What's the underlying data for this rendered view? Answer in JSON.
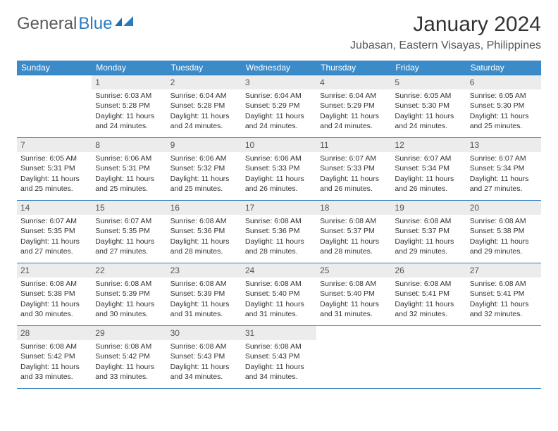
{
  "logo": {
    "text1": "General",
    "text2": "Blue"
  },
  "title": "January 2024",
  "location": "Jubasan, Eastern Visayas, Philippines",
  "colors": {
    "header_bg": "#3b8bc9",
    "header_text": "#ffffff",
    "rule": "#2b7bbf",
    "daynum_bg": "#ececec",
    "body_text": "#333333",
    "location_text": "#555555"
  },
  "day_names": [
    "Sunday",
    "Monday",
    "Tuesday",
    "Wednesday",
    "Thursday",
    "Friday",
    "Saturday"
  ],
  "weeks": [
    [
      {
        "day": "",
        "sunrise": "",
        "sunset": "",
        "daylight1": "",
        "daylight2": ""
      },
      {
        "day": "1",
        "sunrise": "Sunrise: 6:03 AM",
        "sunset": "Sunset: 5:28 PM",
        "daylight1": "Daylight: 11 hours",
        "daylight2": "and 24 minutes."
      },
      {
        "day": "2",
        "sunrise": "Sunrise: 6:04 AM",
        "sunset": "Sunset: 5:28 PM",
        "daylight1": "Daylight: 11 hours",
        "daylight2": "and 24 minutes."
      },
      {
        "day": "3",
        "sunrise": "Sunrise: 6:04 AM",
        "sunset": "Sunset: 5:29 PM",
        "daylight1": "Daylight: 11 hours",
        "daylight2": "and 24 minutes."
      },
      {
        "day": "4",
        "sunrise": "Sunrise: 6:04 AM",
        "sunset": "Sunset: 5:29 PM",
        "daylight1": "Daylight: 11 hours",
        "daylight2": "and 24 minutes."
      },
      {
        "day": "5",
        "sunrise": "Sunrise: 6:05 AM",
        "sunset": "Sunset: 5:30 PM",
        "daylight1": "Daylight: 11 hours",
        "daylight2": "and 24 minutes."
      },
      {
        "day": "6",
        "sunrise": "Sunrise: 6:05 AM",
        "sunset": "Sunset: 5:30 PM",
        "daylight1": "Daylight: 11 hours",
        "daylight2": "and 25 minutes."
      }
    ],
    [
      {
        "day": "7",
        "sunrise": "Sunrise: 6:05 AM",
        "sunset": "Sunset: 5:31 PM",
        "daylight1": "Daylight: 11 hours",
        "daylight2": "and 25 minutes."
      },
      {
        "day": "8",
        "sunrise": "Sunrise: 6:06 AM",
        "sunset": "Sunset: 5:31 PM",
        "daylight1": "Daylight: 11 hours",
        "daylight2": "and 25 minutes."
      },
      {
        "day": "9",
        "sunrise": "Sunrise: 6:06 AM",
        "sunset": "Sunset: 5:32 PM",
        "daylight1": "Daylight: 11 hours",
        "daylight2": "and 25 minutes."
      },
      {
        "day": "10",
        "sunrise": "Sunrise: 6:06 AM",
        "sunset": "Sunset: 5:33 PM",
        "daylight1": "Daylight: 11 hours",
        "daylight2": "and 26 minutes."
      },
      {
        "day": "11",
        "sunrise": "Sunrise: 6:07 AM",
        "sunset": "Sunset: 5:33 PM",
        "daylight1": "Daylight: 11 hours",
        "daylight2": "and 26 minutes."
      },
      {
        "day": "12",
        "sunrise": "Sunrise: 6:07 AM",
        "sunset": "Sunset: 5:34 PM",
        "daylight1": "Daylight: 11 hours",
        "daylight2": "and 26 minutes."
      },
      {
        "day": "13",
        "sunrise": "Sunrise: 6:07 AM",
        "sunset": "Sunset: 5:34 PM",
        "daylight1": "Daylight: 11 hours",
        "daylight2": "and 27 minutes."
      }
    ],
    [
      {
        "day": "14",
        "sunrise": "Sunrise: 6:07 AM",
        "sunset": "Sunset: 5:35 PM",
        "daylight1": "Daylight: 11 hours",
        "daylight2": "and 27 minutes."
      },
      {
        "day": "15",
        "sunrise": "Sunrise: 6:07 AM",
        "sunset": "Sunset: 5:35 PM",
        "daylight1": "Daylight: 11 hours",
        "daylight2": "and 27 minutes."
      },
      {
        "day": "16",
        "sunrise": "Sunrise: 6:08 AM",
        "sunset": "Sunset: 5:36 PM",
        "daylight1": "Daylight: 11 hours",
        "daylight2": "and 28 minutes."
      },
      {
        "day": "17",
        "sunrise": "Sunrise: 6:08 AM",
        "sunset": "Sunset: 5:36 PM",
        "daylight1": "Daylight: 11 hours",
        "daylight2": "and 28 minutes."
      },
      {
        "day": "18",
        "sunrise": "Sunrise: 6:08 AM",
        "sunset": "Sunset: 5:37 PM",
        "daylight1": "Daylight: 11 hours",
        "daylight2": "and 28 minutes."
      },
      {
        "day": "19",
        "sunrise": "Sunrise: 6:08 AM",
        "sunset": "Sunset: 5:37 PM",
        "daylight1": "Daylight: 11 hours",
        "daylight2": "and 29 minutes."
      },
      {
        "day": "20",
        "sunrise": "Sunrise: 6:08 AM",
        "sunset": "Sunset: 5:38 PM",
        "daylight1": "Daylight: 11 hours",
        "daylight2": "and 29 minutes."
      }
    ],
    [
      {
        "day": "21",
        "sunrise": "Sunrise: 6:08 AM",
        "sunset": "Sunset: 5:38 PM",
        "daylight1": "Daylight: 11 hours",
        "daylight2": "and 30 minutes."
      },
      {
        "day": "22",
        "sunrise": "Sunrise: 6:08 AM",
        "sunset": "Sunset: 5:39 PM",
        "daylight1": "Daylight: 11 hours",
        "daylight2": "and 30 minutes."
      },
      {
        "day": "23",
        "sunrise": "Sunrise: 6:08 AM",
        "sunset": "Sunset: 5:39 PM",
        "daylight1": "Daylight: 11 hours",
        "daylight2": "and 31 minutes."
      },
      {
        "day": "24",
        "sunrise": "Sunrise: 6:08 AM",
        "sunset": "Sunset: 5:40 PM",
        "daylight1": "Daylight: 11 hours",
        "daylight2": "and 31 minutes."
      },
      {
        "day": "25",
        "sunrise": "Sunrise: 6:08 AM",
        "sunset": "Sunset: 5:40 PM",
        "daylight1": "Daylight: 11 hours",
        "daylight2": "and 31 minutes."
      },
      {
        "day": "26",
        "sunrise": "Sunrise: 6:08 AM",
        "sunset": "Sunset: 5:41 PM",
        "daylight1": "Daylight: 11 hours",
        "daylight2": "and 32 minutes."
      },
      {
        "day": "27",
        "sunrise": "Sunrise: 6:08 AM",
        "sunset": "Sunset: 5:41 PM",
        "daylight1": "Daylight: 11 hours",
        "daylight2": "and 32 minutes."
      }
    ],
    [
      {
        "day": "28",
        "sunrise": "Sunrise: 6:08 AM",
        "sunset": "Sunset: 5:42 PM",
        "daylight1": "Daylight: 11 hours",
        "daylight2": "and 33 minutes."
      },
      {
        "day": "29",
        "sunrise": "Sunrise: 6:08 AM",
        "sunset": "Sunset: 5:42 PM",
        "daylight1": "Daylight: 11 hours",
        "daylight2": "and 33 minutes."
      },
      {
        "day": "30",
        "sunrise": "Sunrise: 6:08 AM",
        "sunset": "Sunset: 5:43 PM",
        "daylight1": "Daylight: 11 hours",
        "daylight2": "and 34 minutes."
      },
      {
        "day": "31",
        "sunrise": "Sunrise: 6:08 AM",
        "sunset": "Sunset: 5:43 PM",
        "daylight1": "Daylight: 11 hours",
        "daylight2": "and 34 minutes."
      },
      {
        "day": "",
        "sunrise": "",
        "sunset": "",
        "daylight1": "",
        "daylight2": ""
      },
      {
        "day": "",
        "sunrise": "",
        "sunset": "",
        "daylight1": "",
        "daylight2": ""
      },
      {
        "day": "",
        "sunrise": "",
        "sunset": "",
        "daylight1": "",
        "daylight2": ""
      }
    ]
  ]
}
